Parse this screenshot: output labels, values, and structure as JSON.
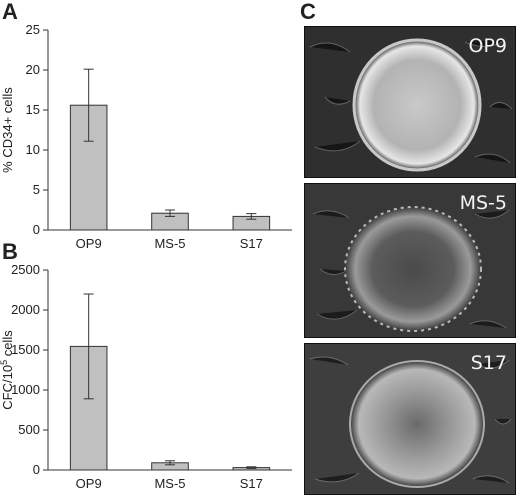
{
  "panels": {
    "a": "A",
    "b": "B",
    "c": "C"
  },
  "chart_data": [
    {
      "type": "bar",
      "categories": [
        "OP9",
        "MS-5",
        "S17"
      ],
      "values": [
        15.6,
        2.1,
        1.7
      ],
      "errors": [
        4.5,
        0.4,
        0.35
      ],
      "ylabel": "% CD34+ cells",
      "ylim": [
        0,
        25
      ],
      "yticks": [
        0,
        5,
        10,
        15,
        20,
        25
      ],
      "grid": false,
      "bar_color": "#c0c0c0"
    },
    {
      "type": "bar",
      "categories": [
        "OP9",
        "MS-5",
        "S17"
      ],
      "values": [
        1545,
        90,
        30
      ],
      "errors": [
        655,
        25,
        10
      ],
      "ylabel_main": "CFC/10",
      "ylabel_sup": "5",
      "ylabel_tail": " cells",
      "ylim": [
        0,
        2500
      ],
      "yticks": [
        0,
        500,
        1000,
        1500,
        2000,
        2500
      ],
      "grid": false,
      "bar_color": "#c0c0c0"
    }
  ],
  "micrographs": [
    {
      "label": "OP9"
    },
    {
      "label": "MS-5"
    },
    {
      "label": "S17"
    }
  ]
}
